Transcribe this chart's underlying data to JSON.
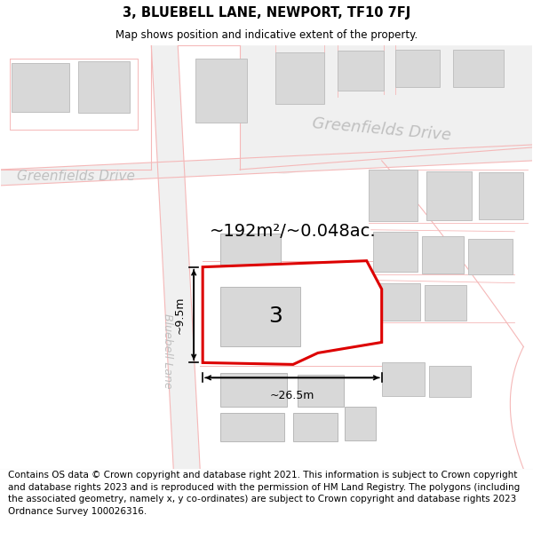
{
  "title": "3, BLUEBELL LANE, NEWPORT, TF10 7FJ",
  "subtitle": "Map shows position and indicative extent of the property.",
  "footer": "Contains OS data © Crown copyright and database right 2021. This information is subject to Crown copyright and database rights 2023 and is reproduced with the permission of HM Land Registry. The polygons (including the associated geometry, namely x, y co-ordinates) are subject to Crown copyright and database rights 2023 Ordnance Survey 100026316.",
  "area_label": "~192m²/~0.048ac.",
  "width_label": "~26.5m",
  "height_label": "~9.5m",
  "number_label": "3",
  "road_label_upper": "Greenfields Drive",
  "road_label_lower": "Greenfields Drive",
  "lane_label": "Bluebell Lane",
  "bg_color": "#ffffff",
  "map_bg": "#ffffff",
  "building_fill": "#d8d8d8",
  "building_edge": "#c0c0c0",
  "plot_fill": "#ffffff",
  "plot_stroke": "#e8000000",
  "road_boundary_color": "#f5b8b8",
  "road_fill": "#efefef",
  "title_fontsize": 10,
  "subtitle_fontsize": 8.5,
  "footer_fontsize": 7.5,
  "road_text_color": "#aaaaaa"
}
